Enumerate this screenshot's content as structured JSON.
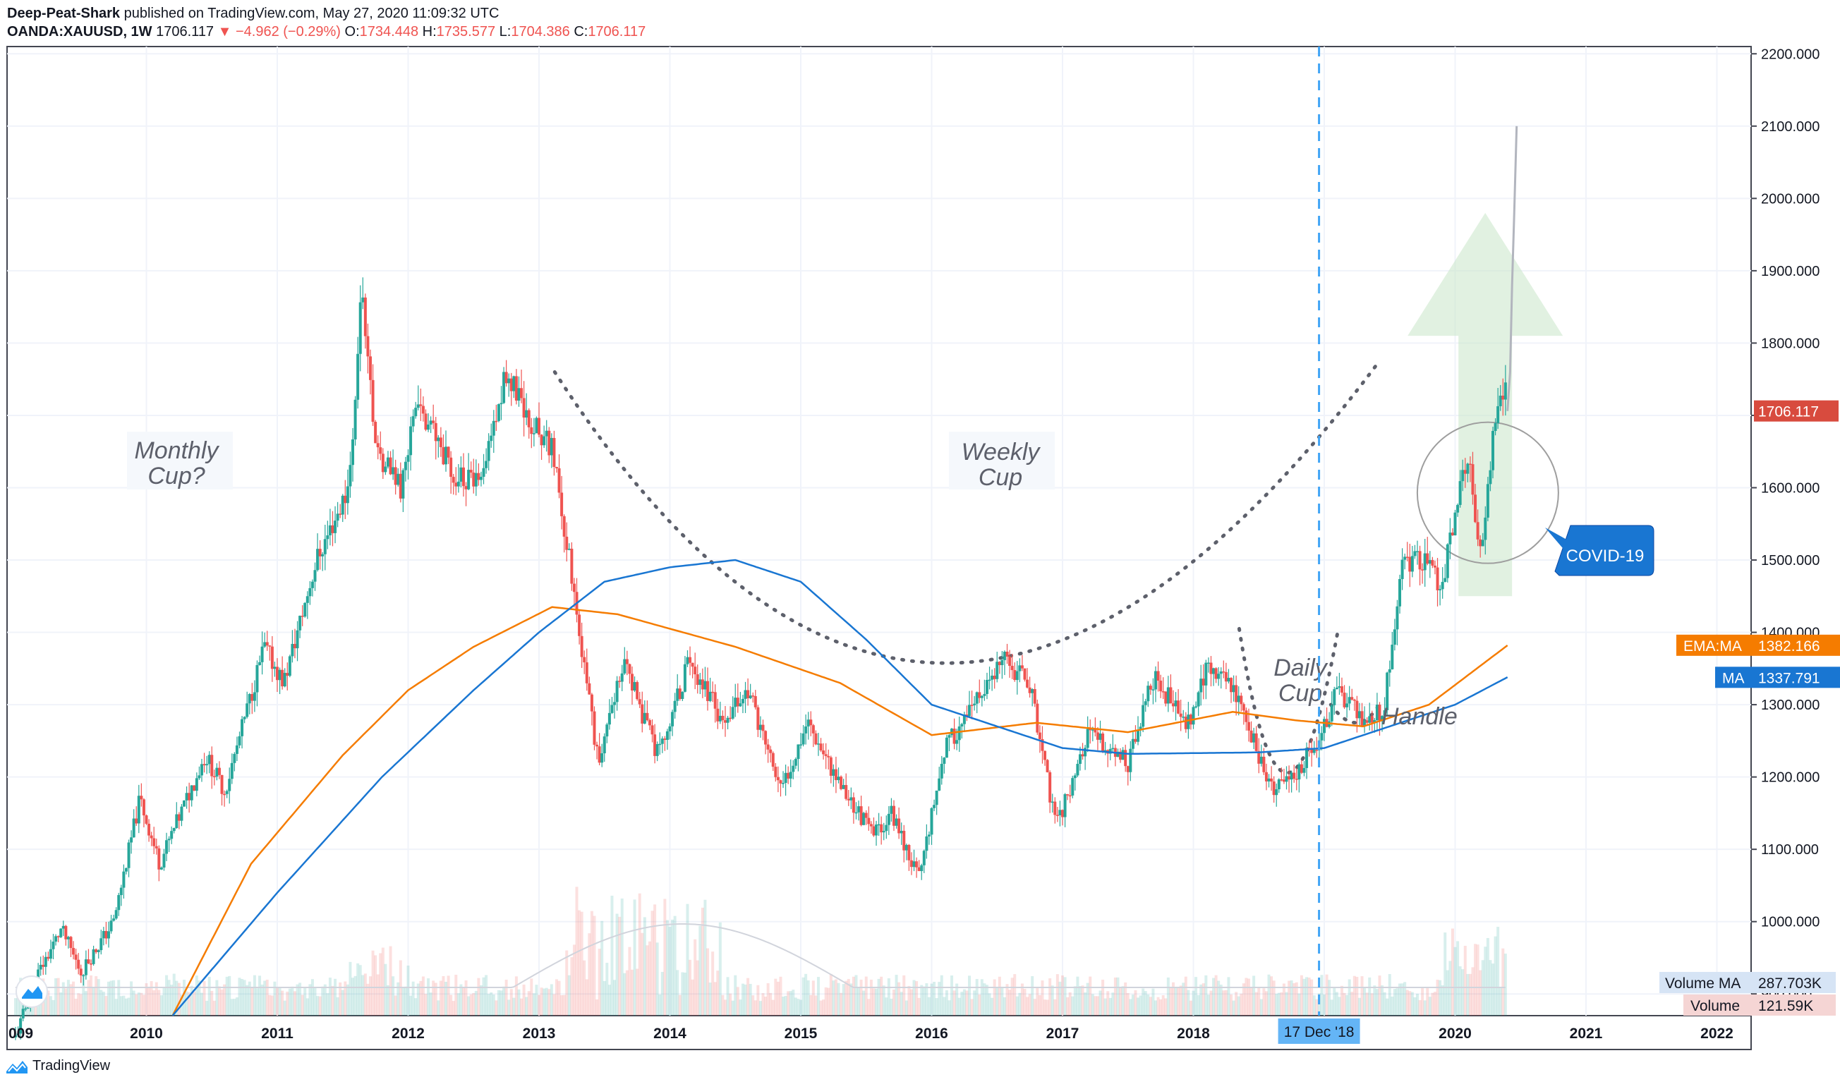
{
  "header": {
    "author": "Deep-Peat-Shark",
    "published": "published on TradingView.com, May 27, 2020 11:09:32 UTC",
    "symbol": "OANDA:XAUUSD, 1W",
    "last": "1706.117",
    "change": "▼ −4.962 (−0.29%)",
    "o_label": "O:",
    "o_value": "1734.448",
    "h_label": "H:",
    "h_value": "1735.577",
    "l_label": "L:",
    "l_value": "1704.386",
    "c_label": "C:",
    "c_value": "1706.117"
  },
  "footer": {
    "brand": "TradingView"
  },
  "colors": {
    "up": "#26a69a",
    "down": "#ef5350",
    "ema": "#f57c00",
    "ma": "#1976d2",
    "price_badge": "#d84b3e",
    "marker_line": "#42a5f5",
    "arrow": "#c8e6c9"
  },
  "chart_data": {
    "type": "candlestick",
    "title": "OANDA:XAUUSD, 1W",
    "x_axis": {
      "tick_labels": [
        "009",
        "2010",
        "2011",
        "2012",
        "2013",
        "2014",
        "2015",
        "2016",
        "2017",
        "2018",
        "2019",
        "2020",
        "2021",
        "2022"
      ],
      "highlight_label": "17 Dec '18"
    },
    "y_axis": {
      "range": [
        870,
        2210
      ],
      "tick_labels": [
        "2200.000",
        "2100.000",
        "2000.000",
        "1900.000",
        "1800.000",
        "1700.000",
        "1600.000",
        "1500.000",
        "1400.000",
        "1300.000",
        "1200.000",
        "1100.000",
        "1000.000",
        "900.000"
      ]
    },
    "price_anchors": [
      [
        2009.0,
        840
      ],
      [
        2009.15,
        920
      ],
      [
        2009.35,
        990
      ],
      [
        2009.5,
        930
      ],
      [
        2009.75,
        1000
      ],
      [
        2009.95,
        1170
      ],
      [
        2010.1,
        1080
      ],
      [
        2010.45,
        1230
      ],
      [
        2010.6,
        1180
      ],
      [
        2010.9,
        1380
      ],
      [
        2011.05,
        1330
      ],
      [
        2011.3,
        1500
      ],
      [
        2011.55,
        1600
      ],
      [
        2011.65,
        1880
      ],
      [
        2011.75,
        1650
      ],
      [
        2011.95,
        1600
      ],
      [
        2012.05,
        1720
      ],
      [
        2012.35,
        1620
      ],
      [
        2012.55,
        1600
      ],
      [
        2012.75,
        1760
      ],
      [
        2012.9,
        1700
      ],
      [
        2013.1,
        1650
      ],
      [
        2013.25,
        1480
      ],
      [
        2013.45,
        1220
      ],
      [
        2013.65,
        1360
      ],
      [
        2013.9,
        1230
      ],
      [
        2014.15,
        1360
      ],
      [
        2014.4,
        1280
      ],
      [
        2014.6,
        1320
      ],
      [
        2014.85,
        1180
      ],
      [
        2015.05,
        1280
      ],
      [
        2015.3,
        1190
      ],
      [
        2015.55,
        1120
      ],
      [
        2015.7,
        1150
      ],
      [
        2015.9,
        1060
      ],
      [
        2016.1,
        1240
      ],
      [
        2016.3,
        1290
      ],
      [
        2016.55,
        1360
      ],
      [
        2016.75,
        1330
      ],
      [
        2016.95,
        1130
      ],
      [
        2017.2,
        1260
      ],
      [
        2017.5,
        1220
      ],
      [
        2017.7,
        1340
      ],
      [
        2017.95,
        1270
      ],
      [
        2018.1,
        1350
      ],
      [
        2018.3,
        1330
      ],
      [
        2018.6,
        1180
      ],
      [
        2018.75,
        1200
      ],
      [
        2018.96,
        1250
      ],
      [
        2019.1,
        1320
      ],
      [
        2019.3,
        1280
      ],
      [
        2019.45,
        1290
      ],
      [
        2019.6,
        1500
      ],
      [
        2019.75,
        1500
      ],
      [
        2019.9,
        1465
      ],
      [
        2020.0,
        1560
      ],
      [
        2020.1,
        1650
      ],
      [
        2020.2,
        1500
      ],
      [
        2020.3,
        1700
      ],
      [
        2020.38,
        1740
      ],
      [
        2020.4,
        1706
      ]
    ],
    "last_price": "1706.117",
    "projection": {
      "from": 2020.4,
      "to": 2020.47,
      "start": 1706,
      "end": 2100
    },
    "series": [
      {
        "name": "EMA:MA",
        "value": "1382.166",
        "anchors": [
          [
            2010.2,
            870
          ],
          [
            2010.8,
            1080
          ],
          [
            2011.5,
            1230
          ],
          [
            2012.0,
            1320
          ],
          [
            2012.5,
            1380
          ],
          [
            2013.1,
            1435
          ],
          [
            2013.6,
            1425
          ],
          [
            2014.5,
            1380
          ],
          [
            2015.3,
            1330
          ],
          [
            2016.0,
            1258
          ],
          [
            2016.8,
            1275
          ],
          [
            2017.5,
            1262
          ],
          [
            2018.3,
            1290
          ],
          [
            2018.8,
            1278
          ],
          [
            2019.3,
            1270
          ],
          [
            2019.8,
            1300
          ],
          [
            2020.4,
            1382
          ]
        ]
      },
      {
        "name": "MA",
        "value": "1337.791",
        "anchors": [
          [
            2010.2,
            870
          ],
          [
            2011.0,
            1040
          ],
          [
            2011.8,
            1200
          ],
          [
            2012.5,
            1320
          ],
          [
            2013.0,
            1400
          ],
          [
            2013.5,
            1470
          ],
          [
            2014.0,
            1490
          ],
          [
            2014.5,
            1500
          ],
          [
            2015.0,
            1470
          ],
          [
            2015.5,
            1390
          ],
          [
            2016.0,
            1300
          ],
          [
            2016.5,
            1270
          ],
          [
            2017.0,
            1240
          ],
          [
            2017.5,
            1232
          ],
          [
            2018.5,
            1234
          ],
          [
            2019.0,
            1240
          ],
          [
            2019.5,
            1270
          ],
          [
            2020.0,
            1300
          ],
          [
            2020.4,
            1338
          ]
        ]
      }
    ],
    "volume": {
      "label": "Volume",
      "value": "121.59K",
      "ma_label": "Volume MA",
      "ma_value": "287.703K"
    },
    "annotations": [
      {
        "text": "Monthly\nCup?"
      },
      {
        "text": "Weekly\nCup"
      },
      {
        "text": "Daily\nCup"
      },
      {
        "text": "Handle"
      },
      {
        "text": "COVID-19"
      }
    ],
    "grid": true,
    "scale": "linear"
  }
}
